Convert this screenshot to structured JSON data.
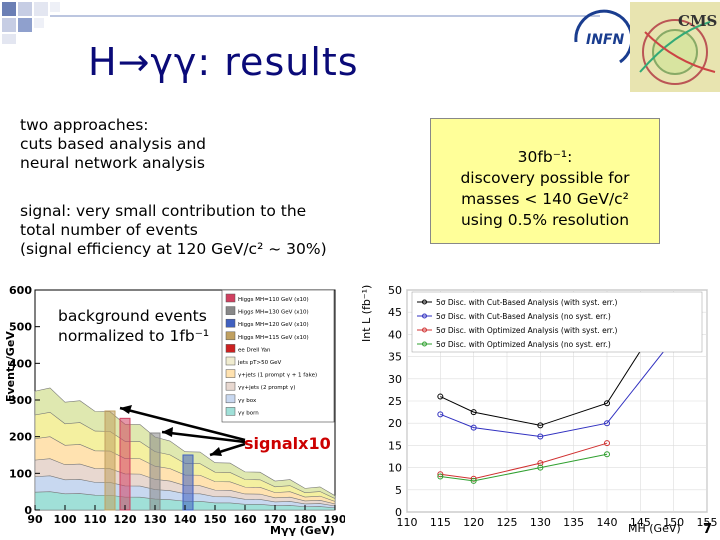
{
  "title": "H→γγ: results",
  "approaches": "two approaches:\ncuts based analysis and\nneural network analysis",
  "signal_text": "signal: very small contribution to the\ntotal number of events\n(signal efficiency at 120 GeV/c² ~ 30%)",
  "box": {
    "line1": "30fb⁻¹:",
    "line2": "discovery possible for",
    "line3": "masses < 140 GeV/c²",
    "line4": "using 0.5% resolution"
  },
  "bg_overlay": "background events\nnormalized to 1fb⁻¹",
  "signal_label": "signalx10",
  "logos": {
    "infn": "INFN",
    "cms": "CMS"
  },
  "page_number": "7",
  "colors": {
    "title": "#0a0a78",
    "box_bg": "#ffff99",
    "signal_label": "#cc0000"
  },
  "chart_data": [
    {
      "type": "area",
      "ylabel": "Events/GeV",
      "xlabel": "Mγγ (GeV)",
      "x_ticks": [
        "90",
        "100",
        "110",
        "120",
        "130",
        "140",
        "150",
        "160",
        "170",
        "180",
        "190"
      ],
      "y_ticks": [
        "0",
        "100",
        "200",
        "300",
        "400",
        "500",
        "600"
      ],
      "xlim": [
        90,
        190
      ],
      "ylim": [
        0,
        600
      ],
      "legend": [
        "Higgs MH=110 GeV (x10)",
        "Higgs MH=130 GeV (x10)",
        "Higgs MH=120 GeV (x10)",
        "Higgs MH=115 GeV (x10)",
        "ee Drell Yan",
        "jets pT>50 GeV",
        "γ+jets (1 prompt γ + 1 fake)",
        "γγ+jets (2 prompt γ)",
        "γγ box",
        "γγ born"
      ],
      "stack_x": [
        90,
        95,
        100,
        105,
        110,
        115,
        120,
        125,
        130,
        135,
        140,
        145,
        150,
        155,
        160,
        165,
        170,
        175,
        180,
        185,
        190
      ],
      "stack_top": [
        330,
        325,
        300,
        290,
        275,
        260,
        240,
        225,
        205,
        180,
        165,
        150,
        135,
        120,
        110,
        95,
        85,
        75,
        65,
        55,
        45
      ],
      "peaks": [
        {
          "name": "Higgs MH=120 GeV (x10)",
          "x": 120,
          "y": 250
        },
        {
          "name": "Higgs MH=130 GeV (x10)",
          "x": 130,
          "y": 210
        },
        {
          "name": "Higgs MH=140 GeV (x10)",
          "x": 141,
          "y": 150
        },
        {
          "name": "Higgs MH=115 GeV (x10)",
          "x": 115,
          "y": 270
        }
      ]
    },
    {
      "type": "line",
      "ylabel": "Int L (fb⁻¹)",
      "xlabel": "MH (GeV)",
      "x_ticks": [
        "110",
        "115",
        "120",
        "125",
        "130",
        "135",
        "140",
        "145",
        "150",
        "155"
      ],
      "y_ticks": [
        "0",
        "5",
        "10",
        "15",
        "20",
        "25",
        "30",
        "35",
        "40",
        "45",
        "50"
      ],
      "xlim": [
        110,
        155
      ],
      "ylim": [
        0,
        50
      ],
      "legend_position": "top",
      "series": [
        {
          "name": "5σ Disc. with Cut-Based Analysis (with syst. err.)",
          "color": "#000000",
          "x": [
            115,
            120,
            130,
            140,
            150
          ],
          "y": [
            26,
            22.5,
            19.5,
            24.5,
            48
          ]
        },
        {
          "name": "5σ Disc. with Cut-Based Analysis (no syst. err.)",
          "color": "#3030c0",
          "x": [
            115,
            120,
            130,
            140,
            150
          ],
          "y": [
            22,
            19,
            17,
            20,
            39
          ]
        },
        {
          "name": "5σ Disc. with Optimized Analysis (with syst. err.)",
          "color": "#d03030",
          "x": [
            115,
            120,
            130,
            140
          ],
          "y": [
            8.5,
            7.5,
            11,
            15.5
          ]
        },
        {
          "name": "5σ Disc. with Optimized Analysis (no syst. err.)",
          "color": "#30a030",
          "x": [
            115,
            120,
            130,
            140
          ],
          "y": [
            8,
            7,
            10,
            13
          ]
        }
      ]
    }
  ]
}
